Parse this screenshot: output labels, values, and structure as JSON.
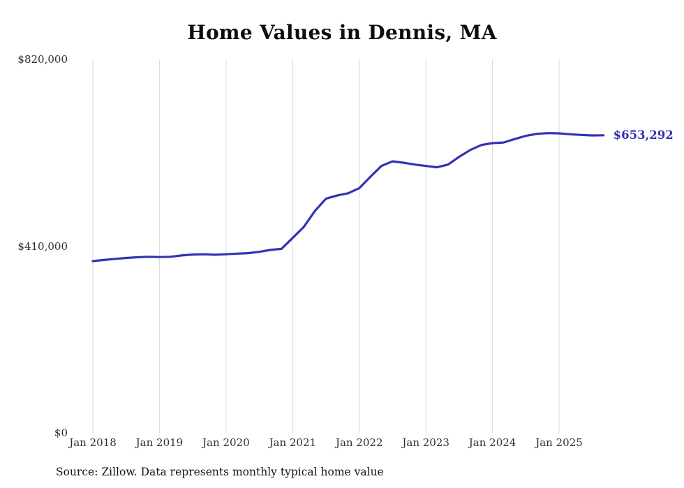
{
  "chart_data": {
    "type": "line",
    "title": "Home Values in Dennis, MA",
    "source_note": "Source: Zillow. Data represents monthly typical home value",
    "end_label": "$653,292",
    "latest_value": 653292,
    "line_color": "#3333b2",
    "grid_color": "#d8d8d8",
    "ylabel": "",
    "xlabel": "",
    "ylim": [
      0,
      820000
    ],
    "legend": "none",
    "grid": "vertical-only",
    "yticks": [
      {
        "value": 0,
        "label": "$0"
      },
      {
        "value": 410000,
        "label": "$410,000"
      },
      {
        "value": 820000,
        "label": "$820,000"
      }
    ],
    "xticks": [
      {
        "date": "2018-01",
        "label": "Jan 2018"
      },
      {
        "date": "2019-01",
        "label": "Jan 2019"
      },
      {
        "date": "2020-01",
        "label": "Jan 2020"
      },
      {
        "date": "2021-01",
        "label": "Jan 2021"
      },
      {
        "date": "2022-01",
        "label": "Jan 2022"
      },
      {
        "date": "2023-01",
        "label": "Jan 2023"
      },
      {
        "date": "2024-01",
        "label": "Jan 2024"
      },
      {
        "date": "2025-01",
        "label": "Jan 2025"
      }
    ],
    "series": [
      {
        "name": "Typical home value",
        "points": [
          [
            "2018-01",
            377000
          ],
          [
            "2018-03",
            379500
          ],
          [
            "2018-05",
            382000
          ],
          [
            "2018-07",
            384000
          ],
          [
            "2018-09",
            385500
          ],
          [
            "2018-11",
            386500
          ],
          [
            "2019-01",
            386000
          ],
          [
            "2019-03",
            386500
          ],
          [
            "2019-05",
            389500
          ],
          [
            "2019-07",
            391500
          ],
          [
            "2019-09",
            392000
          ],
          [
            "2019-11",
            391000
          ],
          [
            "2020-01",
            392000
          ],
          [
            "2020-03",
            393500
          ],
          [
            "2020-05",
            394500
          ],
          [
            "2020-07",
            397500
          ],
          [
            "2020-09",
            401500
          ],
          [
            "2020-11",
            404000
          ],
          [
            "2021-01",
            428000
          ],
          [
            "2021-03",
            452000
          ],
          [
            "2021-05",
            487000
          ],
          [
            "2021-07",
            514000
          ],
          [
            "2021-09",
            521000
          ],
          [
            "2021-11",
            526000
          ],
          [
            "2022-01",
            537000
          ],
          [
            "2022-03",
            562000
          ],
          [
            "2022-05",
            586000
          ],
          [
            "2022-07",
            596000
          ],
          [
            "2022-09",
            593000
          ],
          [
            "2022-11",
            589000
          ],
          [
            "2023-01",
            586000
          ],
          [
            "2023-03",
            583000
          ],
          [
            "2023-05",
            589000
          ],
          [
            "2023-07",
            606000
          ],
          [
            "2023-09",
            621000
          ],
          [
            "2023-11",
            632000
          ],
          [
            "2024-01",
            636000
          ],
          [
            "2024-03",
            637500
          ],
          [
            "2024-05",
            645000
          ],
          [
            "2024-07",
            652000
          ],
          [
            "2024-09",
            656500
          ],
          [
            "2024-11",
            658000
          ],
          [
            "2025-01",
            657500
          ],
          [
            "2025-03",
            655500
          ],
          [
            "2025-05",
            654000
          ],
          [
            "2025-07",
            653000
          ],
          [
            "2025-09",
            653292
          ]
        ]
      }
    ]
  }
}
